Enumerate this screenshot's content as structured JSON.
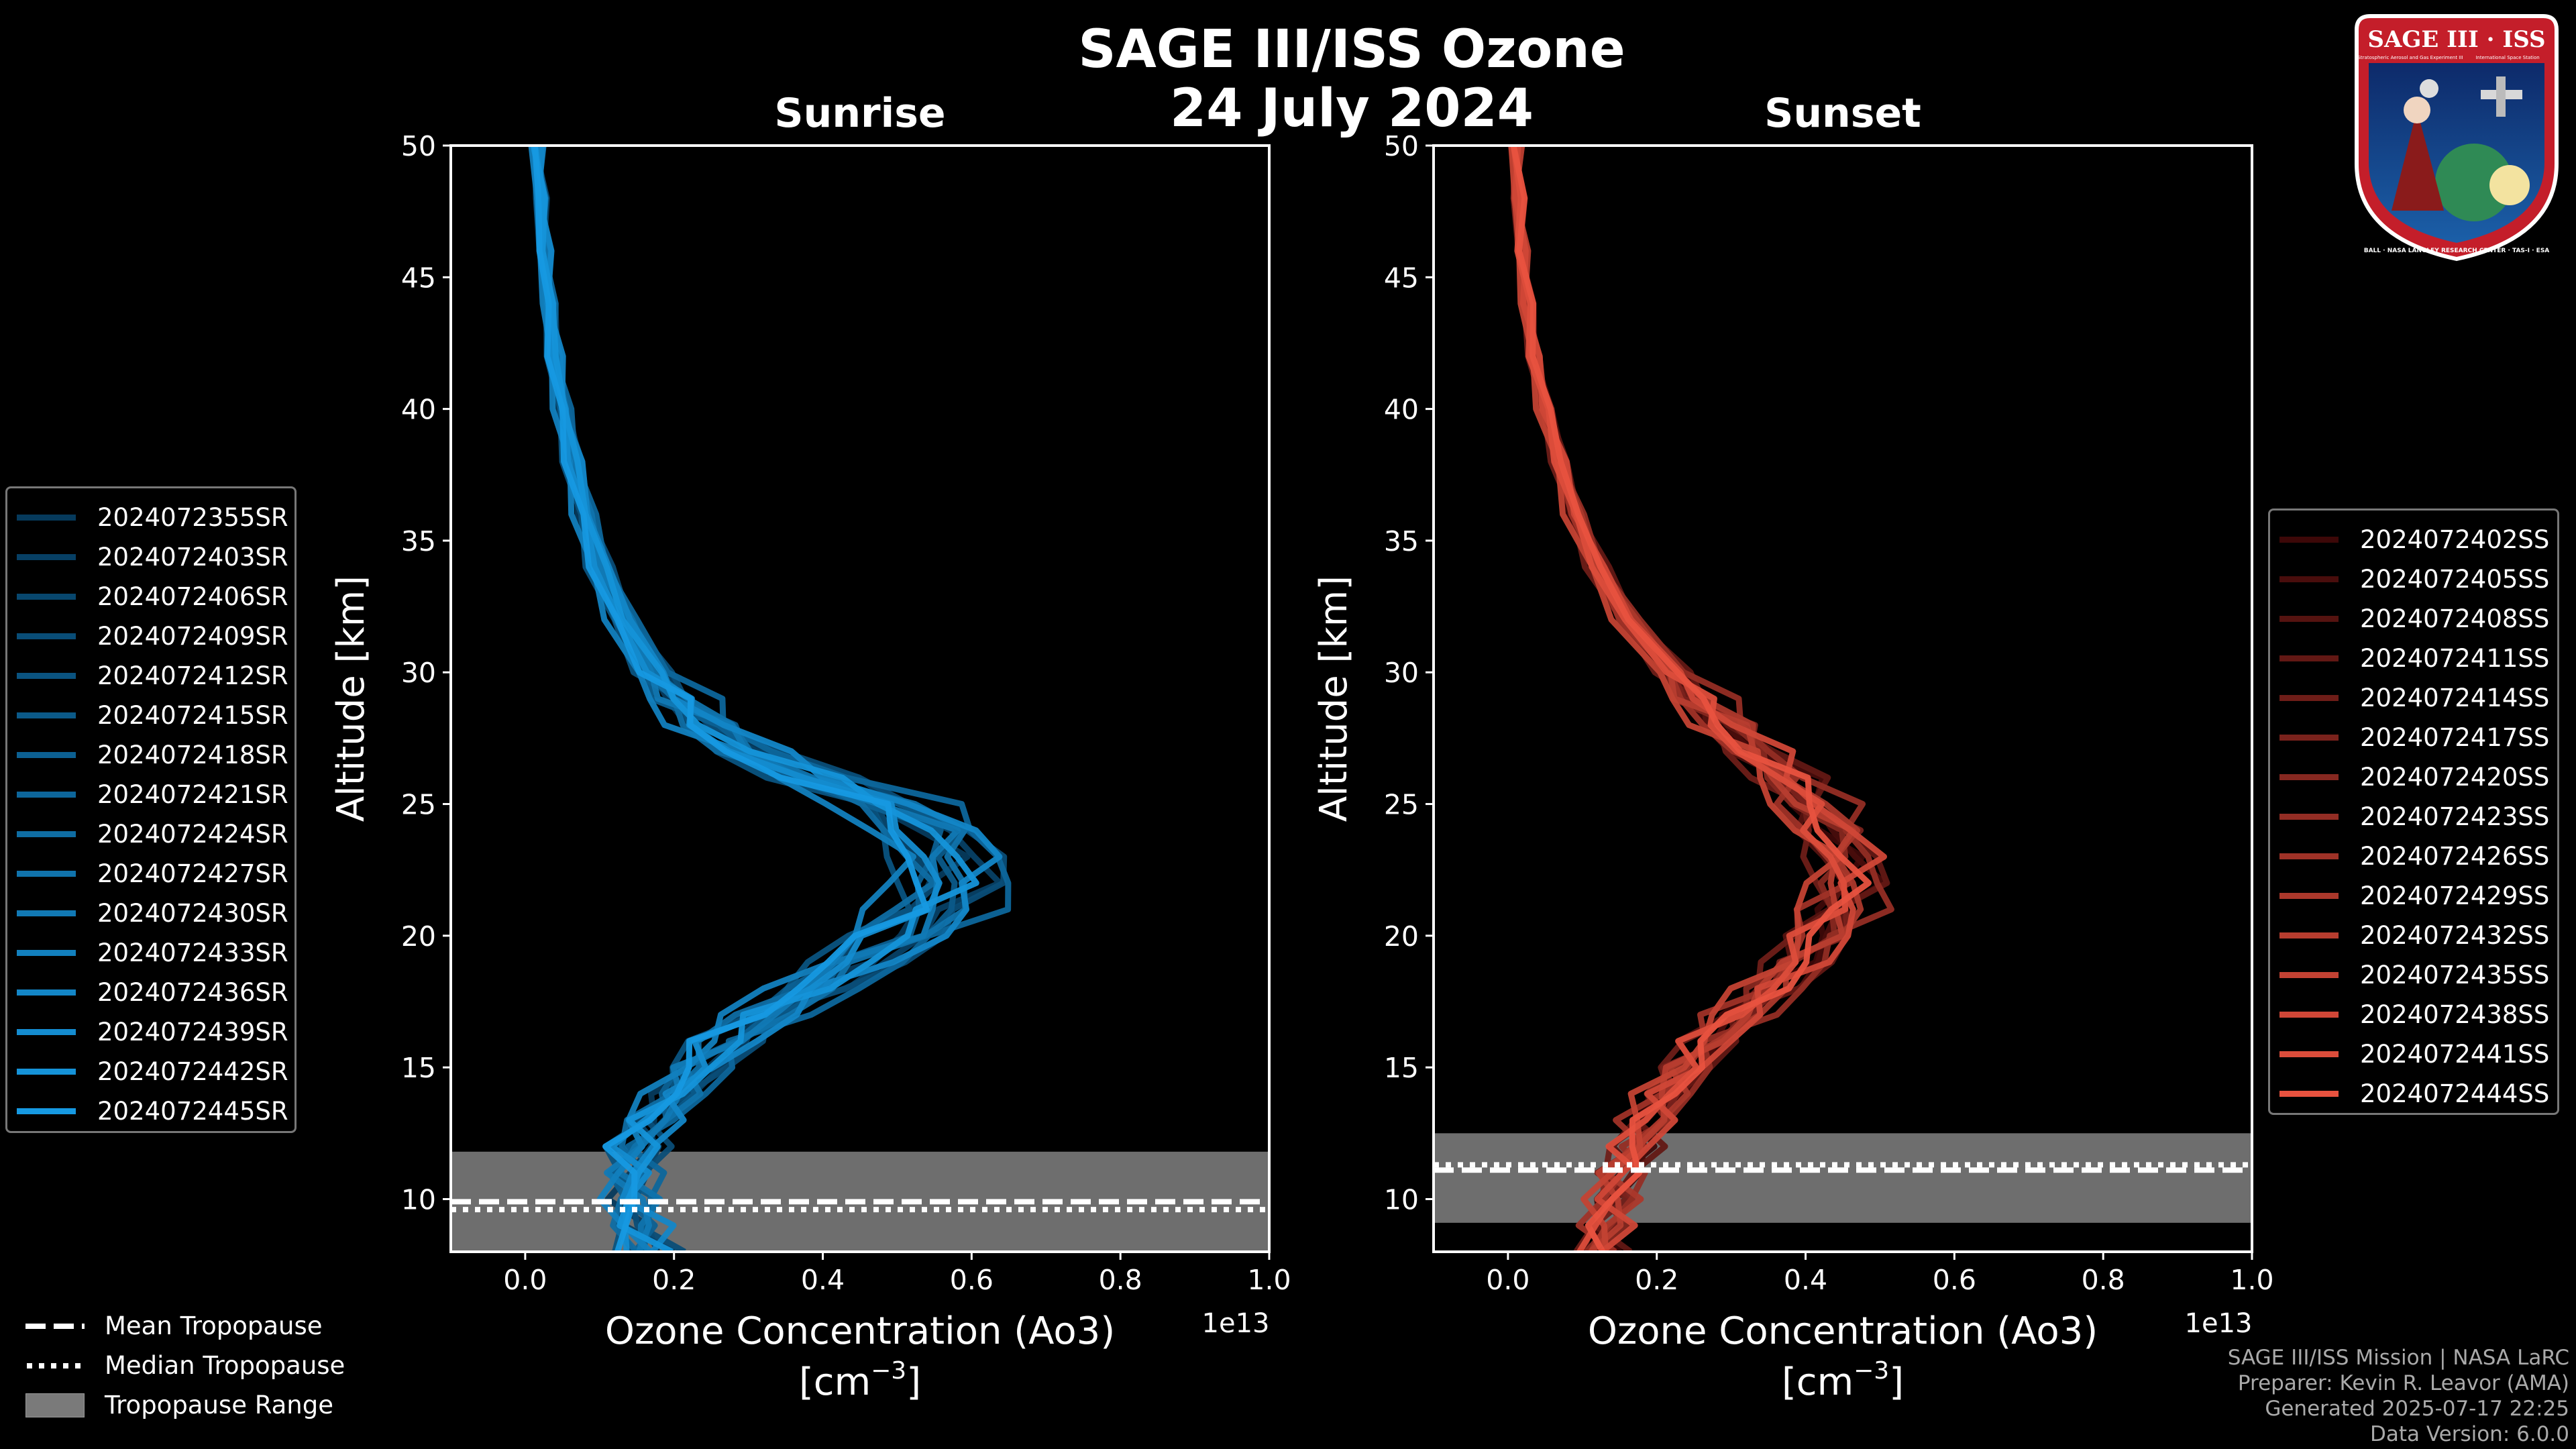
{
  "figure": {
    "title_line1": "SAGE III/ISS Ozone",
    "title_line2": "24 July 2024",
    "background": "#000000"
  },
  "chart_data": [
    {
      "type": "line",
      "title": "Sunrise",
      "xlabel_line1": "Ozone Concentration (Ao3)",
      "xlabel_line2": "[cm",
      "xlabel_exponent": "−3",
      "xlabel_close": "]",
      "ylabel": "Altitude [km]",
      "x_scale_label": "1e13",
      "xlim": [
        -0.1,
        1.0
      ],
      "ylim": [
        8,
        50
      ],
      "xticks": [
        0.0,
        0.2,
        0.4,
        0.6,
        0.8,
        1.0
      ],
      "xtick_labels": [
        "0.0",
        "0.2",
        "0.4",
        "0.6",
        "0.8",
        "1.0"
      ],
      "yticks": [
        10,
        15,
        20,
        25,
        30,
        35,
        40,
        45,
        50
      ],
      "ytick_labels": [
        "10",
        "15",
        "20",
        "25",
        "30",
        "35",
        "40",
        "45",
        "50"
      ],
      "altitudes": [
        8,
        9,
        10,
        11,
        12,
        13,
        14,
        15,
        16,
        17,
        18,
        19,
        20,
        21,
        22,
        23,
        24,
        25,
        26,
        27,
        28,
        29,
        30,
        32,
        34,
        36,
        38,
        40,
        42,
        44,
        46,
        48,
        50
      ],
      "base_profile": [
        0.16,
        0.15,
        0.14,
        0.14,
        0.15,
        0.17,
        0.2,
        0.23,
        0.27,
        0.32,
        0.38,
        0.44,
        0.5,
        0.54,
        0.56,
        0.56,
        0.54,
        0.48,
        0.38,
        0.3,
        0.24,
        0.2,
        0.17,
        0.13,
        0.1,
        0.08,
        0.065,
        0.05,
        0.04,
        0.032,
        0.026,
        0.02,
        0.016
      ],
      "color_start": "#063a5c",
      "color_end": "#1699e2",
      "series": [
        {
          "name": "2024072355SR",
          "scale": 1.0,
          "phase": 0.0
        },
        {
          "name": "2024072403SR",
          "scale": 1.08,
          "phase": 1.3
        },
        {
          "name": "2024072406SR",
          "scale": 0.95,
          "phase": 2.1
        },
        {
          "name": "2024072409SR",
          "scale": 1.12,
          "phase": 0.7
        },
        {
          "name": "2024072412SR",
          "scale": 0.9,
          "phase": 3.3
        },
        {
          "name": "2024072415SR",
          "scale": 1.04,
          "phase": 4.1
        },
        {
          "name": "2024072418SR",
          "scale": 0.98,
          "phase": 5.0
        },
        {
          "name": "2024072421SR",
          "scale": 1.15,
          "phase": 2.7
        },
        {
          "name": "2024072424SR",
          "scale": 0.93,
          "phase": 1.9
        },
        {
          "name": "2024072427SR",
          "scale": 1.06,
          "phase": 3.8
        },
        {
          "name": "2024072430SR",
          "scale": 1.01,
          "phase": 4.6
        },
        {
          "name": "2024072433SR",
          "scale": 0.88,
          "phase": 0.3
        },
        {
          "name": "2024072436SR",
          "scale": 1.1,
          "phase": 5.5
        },
        {
          "name": "2024072439SR",
          "scale": 0.97,
          "phase": 2.4
        },
        {
          "name": "2024072442SR",
          "scale": 1.03,
          "phase": 1.1
        },
        {
          "name": "2024072445SR",
          "scale": 0.94,
          "phase": 3.0
        }
      ],
      "tropopause": {
        "mean": 9.9,
        "median": 9.6,
        "range": [
          8.0,
          11.8
        ]
      }
    },
    {
      "type": "line",
      "title": "Sunset",
      "xlabel_line1": "Ozone Concentration (Ao3)",
      "xlabel_line2": "[cm",
      "xlabel_exponent": "−3",
      "xlabel_close": "]",
      "ylabel": "Altitude [km]",
      "x_scale_label": "1e13",
      "xlim": [
        -0.1,
        1.0
      ],
      "ylim": [
        8,
        50
      ],
      "xticks": [
        0.0,
        0.2,
        0.4,
        0.6,
        0.8,
        1.0
      ],
      "xtick_labels": [
        "0.0",
        "0.2",
        "0.4",
        "0.6",
        "0.8",
        "1.0"
      ],
      "yticks": [
        10,
        15,
        20,
        25,
        30,
        35,
        40,
        45,
        50
      ],
      "ytick_labels": [
        "10",
        "15",
        "20",
        "25",
        "30",
        "35",
        "40",
        "45",
        "50"
      ],
      "altitudes": [
        8,
        9,
        10,
        11,
        12,
        13,
        14,
        15,
        16,
        17,
        18,
        19,
        20,
        21,
        22,
        23,
        24,
        25,
        26,
        27,
        28,
        29,
        30,
        32,
        34,
        36,
        38,
        40,
        42,
        44,
        46,
        48,
        50
      ],
      "base_profile": [
        0.12,
        0.13,
        0.14,
        0.15,
        0.17,
        0.19,
        0.21,
        0.24,
        0.27,
        0.31,
        0.35,
        0.39,
        0.42,
        0.44,
        0.45,
        0.45,
        0.43,
        0.4,
        0.37,
        0.33,
        0.29,
        0.25,
        0.22,
        0.16,
        0.12,
        0.09,
        0.07,
        0.05,
        0.035,
        0.025,
        0.018,
        0.013,
        0.01
      ],
      "color_start": "#3d0808",
      "color_end": "#e8523f",
      "series": [
        {
          "name": "2024072402SS",
          "scale": 1.0,
          "phase": 0.4
        },
        {
          "name": "2024072405SS",
          "scale": 1.05,
          "phase": 1.6
        },
        {
          "name": "2024072408SS",
          "scale": 0.96,
          "phase": 2.2
        },
        {
          "name": "2024072411SS",
          "scale": 1.08,
          "phase": 0.9
        },
        {
          "name": "2024072414SS",
          "scale": 0.93,
          "phase": 3.5
        },
        {
          "name": "2024072417SS",
          "scale": 1.02,
          "phase": 4.4
        },
        {
          "name": "2024072420SS",
          "scale": 0.99,
          "phase": 5.2
        },
        {
          "name": "2024072423SS",
          "scale": 1.1,
          "phase": 2.9
        },
        {
          "name": "2024072426SS",
          "scale": 0.95,
          "phase": 1.2
        },
        {
          "name": "2024072429SS",
          "scale": 1.04,
          "phase": 3.9
        },
        {
          "name": "2024072432SS",
          "scale": 1.0,
          "phase": 4.8
        },
        {
          "name": "2024072435SS",
          "scale": 0.92,
          "phase": 0.1
        },
        {
          "name": "2024072438SS",
          "scale": 1.06,
          "phase": 5.7
        },
        {
          "name": "2024072441SS",
          "scale": 0.98,
          "phase": 2.5
        },
        {
          "name": "2024072444SS",
          "scale": 1.01,
          "phase": 1.8
        }
      ],
      "tropopause": {
        "mean": 11.1,
        "median": 11.3,
        "range": [
          9.1,
          12.5
        ]
      }
    }
  ],
  "bottom_legend": {
    "mean": "Mean Tropopause",
    "median": "Median Tropopause",
    "range": "Tropopause Range",
    "range_color": "#7a7a7a"
  },
  "credits": {
    "line1": "SAGE III/ISS Mission | NASA LaRC",
    "line2": "Preparer: Kevin R. Leavor (AMA)",
    "line3": "Generated 2025-07-17 22:25",
    "line4": "Data Version: 6.0.0"
  },
  "logo": {
    "title": "SAGE III · ISS",
    "ring_text": "BALL · NASA LANGLEY RESEARCH CENTER · TAS-I · ESA",
    "sub_left": "Stratospheric Aerosol and Gas Experiment III",
    "sub_right": "International Space Station"
  }
}
